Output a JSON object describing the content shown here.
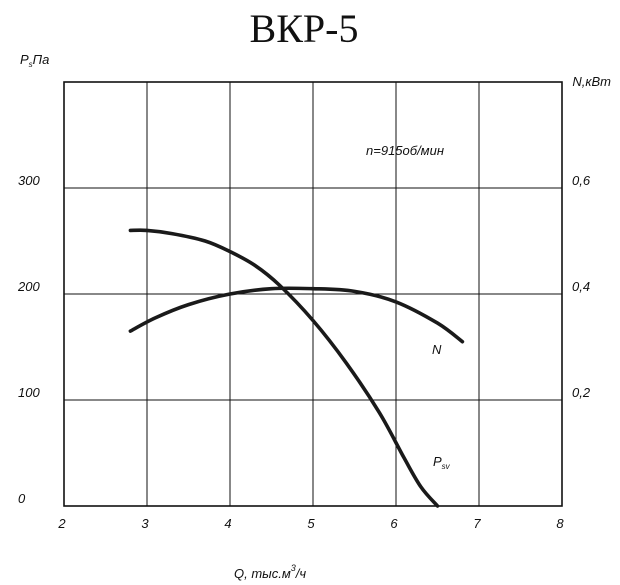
{
  "chart_data": {
    "type": "line",
    "title": "ВКР-5",
    "annotation": "n=915об/мин",
    "xlabel": {
      "main": "Q, тыс.м",
      "sup": "3",
      "end": "/ч"
    },
    "ylabel_left": {
      "main": "P",
      "sub": "s",
      "end": "Па"
    },
    "ylabel_right": "N,кВт",
    "xlim": [
      2,
      8
    ],
    "ylim_left": [
      0,
      400
    ],
    "ylim_right": [
      0,
      0.8
    ],
    "x_ticks": [
      "2",
      "3",
      "4",
      "5",
      "6",
      "7",
      "8"
    ],
    "y_left_ticks": [
      "0",
      "100",
      "200",
      "300"
    ],
    "y_right_ticks": [
      "0,2",
      "0,4",
      "0,6"
    ],
    "grid": true,
    "series": [
      {
        "name": {
          "main": "P",
          "sub": "sv"
        },
        "axis": "left",
        "x": [
          2.8,
          3.0,
          3.3,
          3.7,
          4.0,
          4.3,
          4.6,
          5.0,
          5.4,
          5.8,
          6.1,
          6.3,
          6.5
        ],
        "y": [
          260,
          260,
          257,
          250,
          240,
          227,
          208,
          175,
          135,
          88,
          45,
          18,
          0
        ]
      },
      {
        "name": {
          "main": "N"
        },
        "axis": "right",
        "x": [
          2.8,
          3.1,
          3.5,
          4.0,
          4.5,
          5.0,
          5.5,
          6.0,
          6.5,
          6.8
        ],
        "y": [
          0.33,
          0.355,
          0.38,
          0.4,
          0.41,
          0.41,
          0.405,
          0.385,
          0.345,
          0.31
        ]
      }
    ]
  }
}
